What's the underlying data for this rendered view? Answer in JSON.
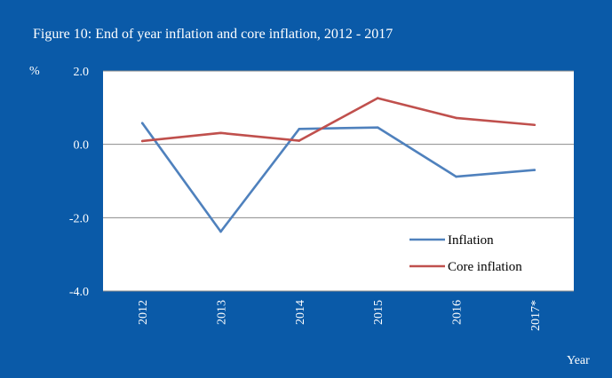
{
  "figure": {
    "title": "Figure 10: End of year inflation and core inflation, 2012 - 2017",
    "unit_label": "%",
    "x_axis_title": "Year"
  },
  "chart_data": {
    "type": "line",
    "title": "Figure 10: End of year inflation and core inflation, 2012 - 2017",
    "xlabel": "Year",
    "ylabel": "%",
    "categories": [
      "2012",
      "2013",
      "2014",
      "2015",
      "2016",
      "2017*"
    ],
    "ylim": [
      -4.0,
      2.0
    ],
    "yticks": [
      "2.0",
      "0.0",
      "-2.0",
      "-4.0"
    ],
    "ytick_values": [
      2.0,
      0.0,
      -2.0,
      -4.0
    ],
    "grid": "horizontal",
    "legend_position": "lower-right inside",
    "series": [
      {
        "name": "Inflation",
        "color": "#4f81bd",
        "values": [
          0.58,
          -2.38,
          0.42,
          0.46,
          -0.88,
          -0.7
        ]
      },
      {
        "name": "Core inflation",
        "color": "#c0504d",
        "values": [
          0.09,
          0.31,
          0.1,
          1.26,
          0.72,
          0.53
        ]
      }
    ]
  }
}
